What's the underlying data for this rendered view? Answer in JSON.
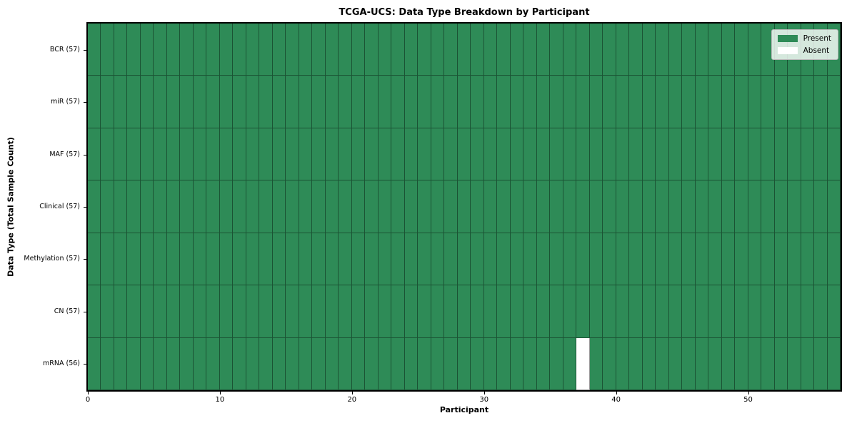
{
  "chart_data": {
    "type": "heatmap",
    "title": "TCGA-UCS: Data Type Breakdown by Participant",
    "xlabel": "Participant",
    "ylabel": "Data Type (Total Sample Count)",
    "x_ticks": [
      0,
      10,
      20,
      30,
      40,
      50
    ],
    "x_range": [
      0,
      57
    ],
    "n_participants": 57,
    "grid_on": false,
    "legend_position": "upper right",
    "rows": [
      {
        "label": "BCR (57)",
        "data_type": "BCR",
        "present_count": 57,
        "absent_participant_indices": []
      },
      {
        "label": "miR (57)",
        "data_type": "miR",
        "present_count": 57,
        "absent_participant_indices": []
      },
      {
        "label": "MAF (57)",
        "data_type": "MAF",
        "present_count": 57,
        "absent_participant_indices": []
      },
      {
        "label": "Clinical (57)",
        "data_type": "Clinical",
        "present_count": 57,
        "absent_participant_indices": []
      },
      {
        "label": "Methylation (57)",
        "data_type": "Methylation",
        "present_count": 57,
        "absent_participant_indices": []
      },
      {
        "label": "CN (57)",
        "data_type": "CN",
        "present_count": 57,
        "absent_participant_indices": []
      },
      {
        "label": "mRNA (56)",
        "data_type": "mRNA",
        "present_count": 56,
        "absent_participant_indices": [
          37
        ]
      }
    ],
    "legend": [
      {
        "label": "Present",
        "color": "#2e8b57"
      },
      {
        "label": "Absent",
        "color": "#ffffff"
      }
    ],
    "colors": {
      "present": "#2e8b57",
      "absent": "#ffffff",
      "cell_edge": "rgba(0,0,0,0.40)",
      "frame": "#000000",
      "background": "#ffffff"
    }
  }
}
